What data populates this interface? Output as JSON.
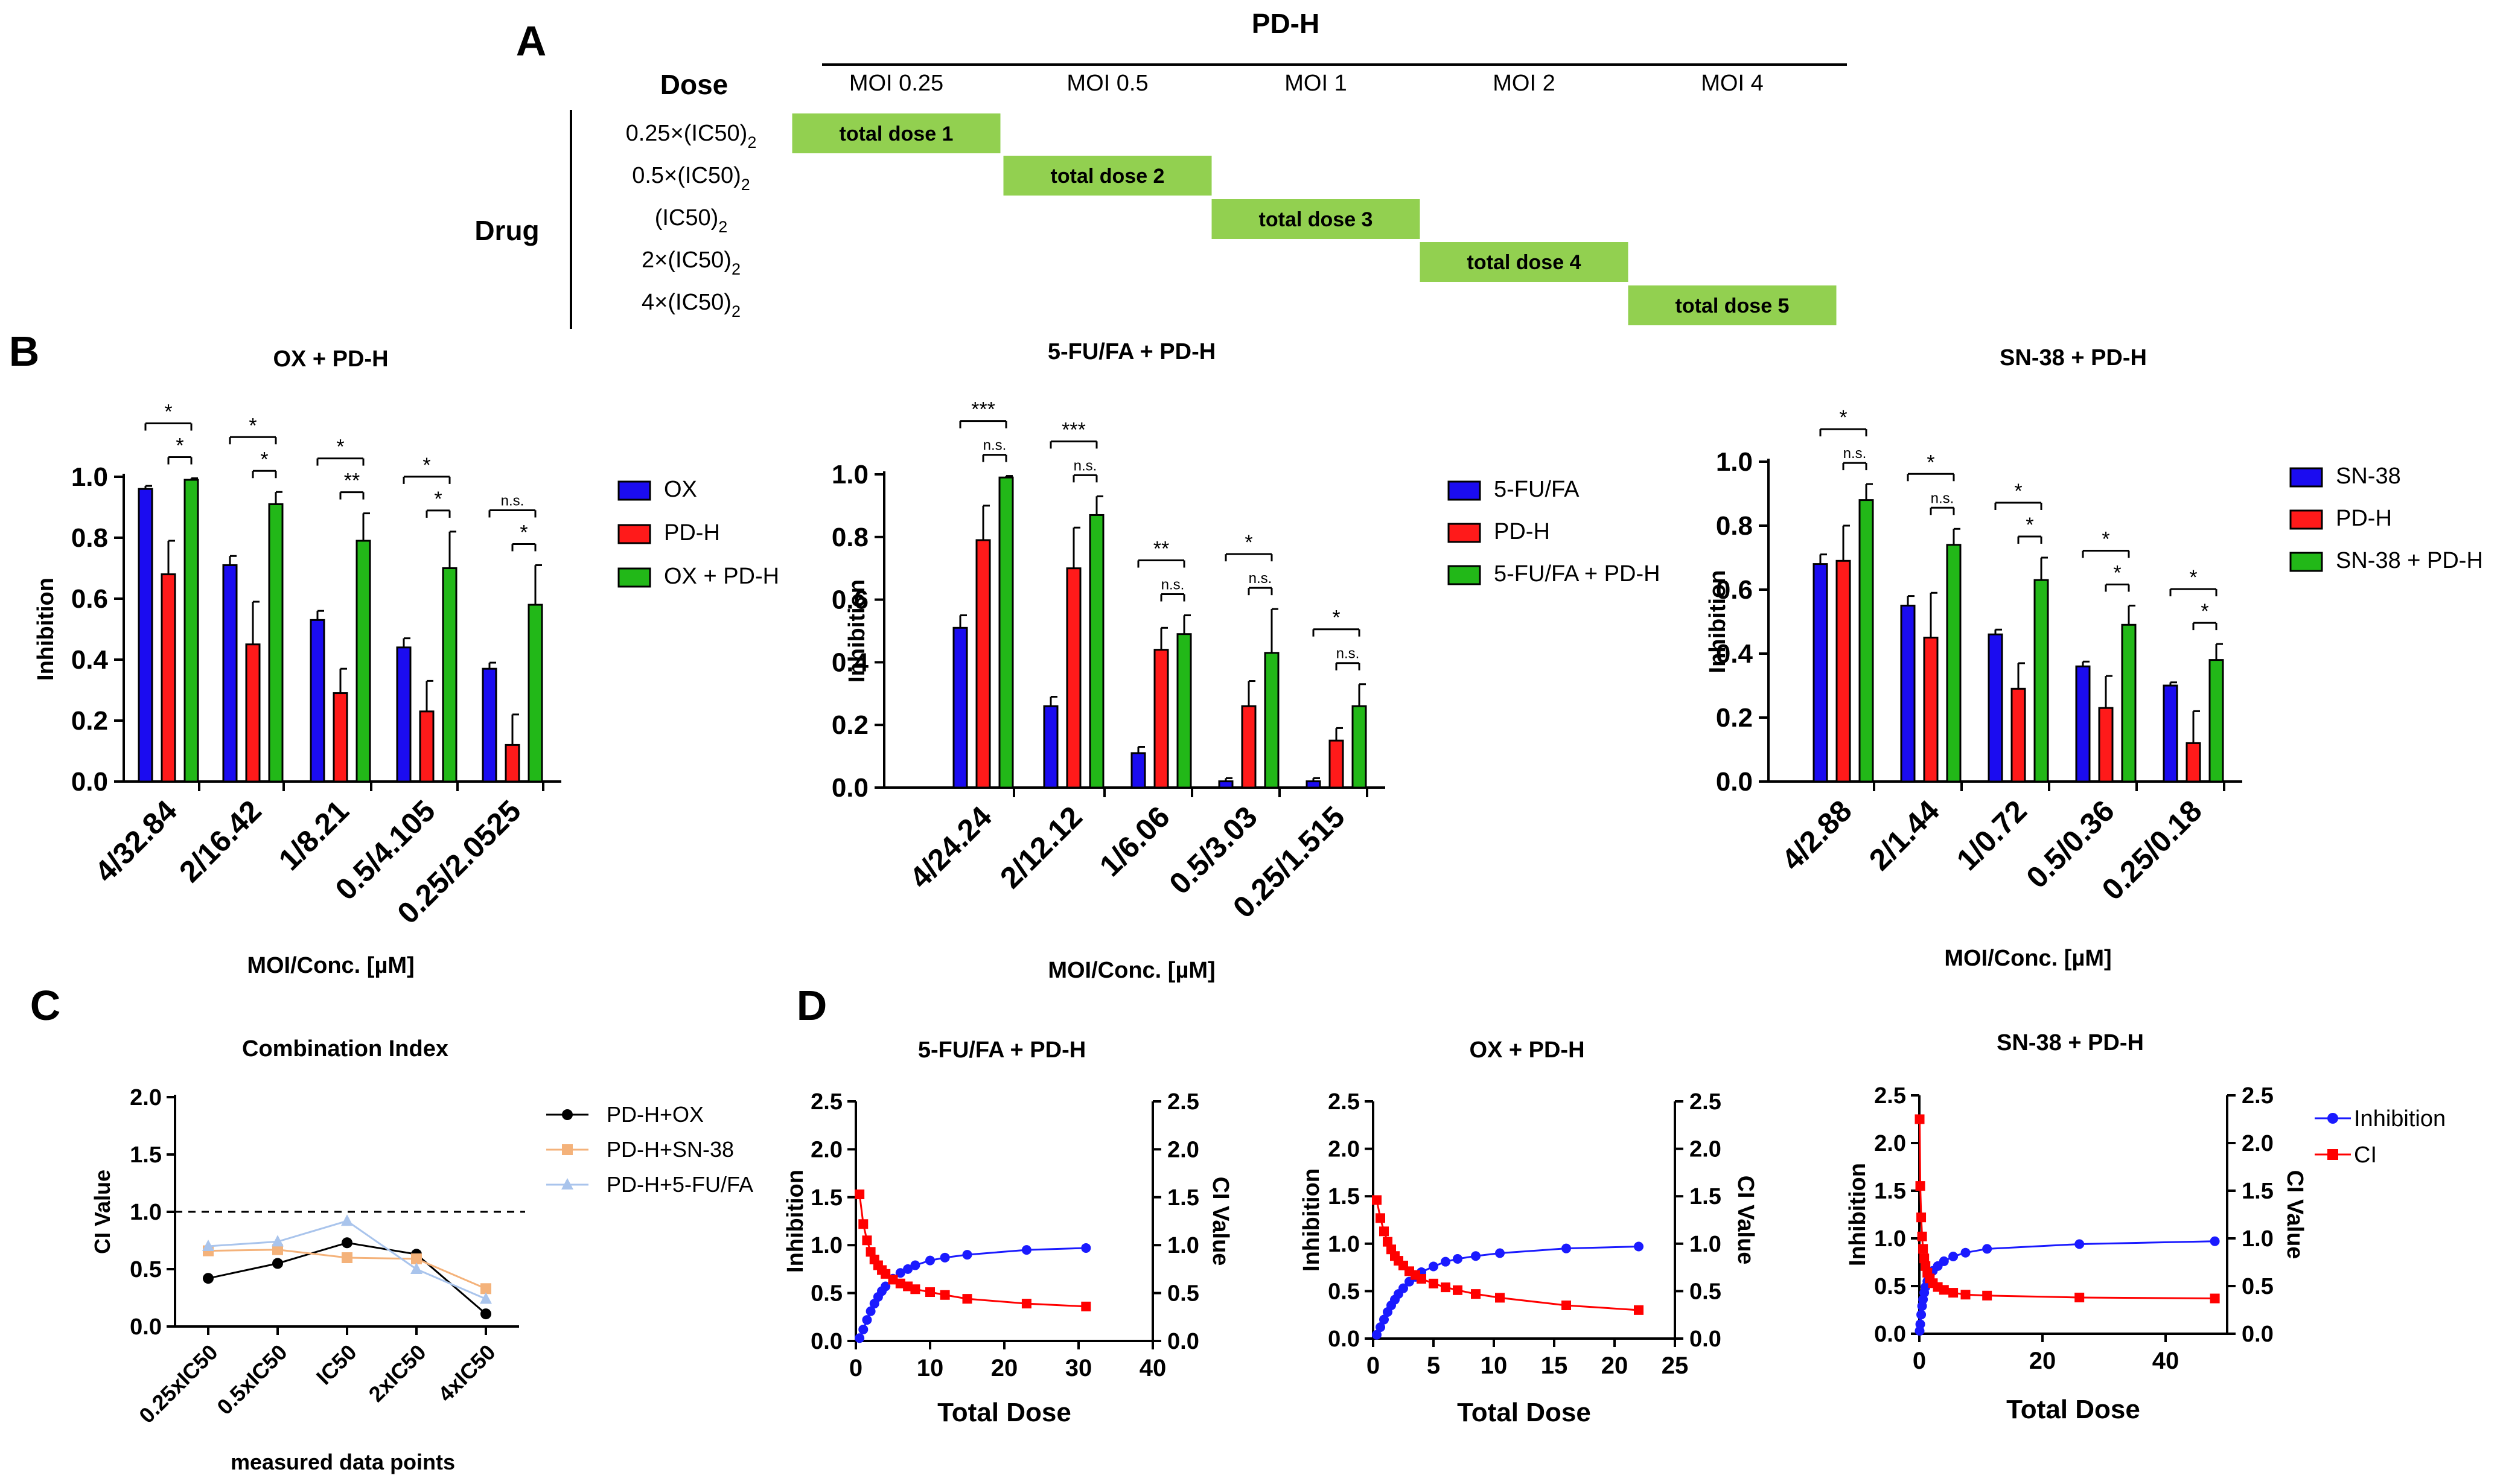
{
  "panel_labels": {
    "A": "A",
    "B": "B",
    "C": "C",
    "D": "D"
  },
  "panel_a": {
    "title": "PD-H",
    "dose_header": "Dose",
    "drug_label": "Drug",
    "moi_columns": [
      "MOI 0.25",
      "MOI 0.5",
      "MOI 1",
      "MOI 2",
      "MOI 4"
    ],
    "dose_rows": [
      {
        "prefix": "0.25×(IC50)",
        "sub": "2"
      },
      {
        "prefix": "0.5×(IC50)",
        "sub": "2"
      },
      {
        "prefix": "(IC50)",
        "sub": "2"
      },
      {
        "prefix": "2×(IC50)",
        "sub": "2"
      },
      {
        "prefix": "4×(IC50)",
        "sub": "2"
      }
    ],
    "cells": [
      "total dose 1",
      "total dose 2",
      "total dose 3",
      "total dose 4",
      "total dose 5"
    ],
    "cell_color": "#92d050"
  },
  "colors": {
    "blue": "#1b0cf0",
    "red": "#ff1a1a",
    "green": "#22b818",
    "black": "#000000",
    "orange": "#f4b27a",
    "lightblue": "#a9c4ec",
    "series_blue": "#1a1aff",
    "series_red": "#ff0000"
  },
  "chart_data": [
    {
      "id": "B1",
      "type": "bar",
      "title": "OX + PD-H",
      "xlabel": "MOI/Conc. [µM]",
      "ylabel": "Inhibition",
      "ylim": [
        0,
        1.0
      ],
      "yticks": [
        "0.0",
        "0.2",
        "0.4",
        "0.6",
        "0.8",
        "1.0"
      ],
      "categories": [
        "4/32.84",
        "2/16.42",
        "1/8.21",
        "0.5/4.105",
        "0.25/2.0525"
      ],
      "series": [
        {
          "name": "OX",
          "color": "blue",
          "values": [
            0.96,
            0.71,
            0.53,
            0.44,
            0.37
          ],
          "err": [
            0.01,
            0.03,
            0.03,
            0.03,
            0.02
          ]
        },
        {
          "name": "PD-H",
          "color": "red",
          "values": [
            0.68,
            0.45,
            0.29,
            0.23,
            0.12
          ],
          "err": [
            0.11,
            0.14,
            0.08,
            0.1,
            0.1
          ]
        },
        {
          "name": "OX + PD-H",
          "color": "green",
          "values": [
            0.99,
            0.91,
            0.79,
            0.7,
            0.58
          ],
          "err": [
            0.005,
            0.04,
            0.09,
            0.12,
            0.13
          ]
        }
      ],
      "sig_outer": [
        "*",
        "*",
        "*",
        "*",
        "n.s."
      ],
      "sig_inner": [
        "*",
        "*",
        "**",
        "*",
        "*"
      ]
    },
    {
      "id": "B2",
      "type": "bar",
      "title": "5-FU/FA + PD-H",
      "xlabel": "MOI/Conc. [µM]",
      "ylabel": "Inhibition",
      "ylim": [
        0,
        1.0
      ],
      "yticks": [
        "0.0",
        "0.2",
        "0.4",
        "0.6",
        "0.8",
        "1.0"
      ],
      "categories": [
        "4/24.24",
        "2/12.12",
        "1/6.06",
        "0.5/3.03",
        "0.25/1.515"
      ],
      "series": [
        {
          "name": "5-FU/FA",
          "color": "blue",
          "values": [
            0.51,
            0.26,
            0.11,
            0.02,
            0.02
          ],
          "err": [
            0.04,
            0.03,
            0.02,
            0.01,
            0.01
          ]
        },
        {
          "name": "PD-H",
          "color": "red",
          "values": [
            0.79,
            0.7,
            0.44,
            0.26,
            0.15
          ],
          "err": [
            0.11,
            0.13,
            0.07,
            0.08,
            0.04
          ]
        },
        {
          "name": "5-FU/FA + PD-H",
          "color": "green",
          "values": [
            0.99,
            0.87,
            0.49,
            0.43,
            0.26
          ],
          "err": [
            0.005,
            0.06,
            0.06,
            0.14,
            0.07
          ]
        }
      ],
      "sig_outer": [
        "***",
        "***",
        "**",
        "*",
        "*"
      ],
      "sig_inner": [
        "n.s.",
        "n.s.",
        "n.s.",
        "n.s.",
        "n.s."
      ]
    },
    {
      "id": "B3",
      "type": "bar",
      "title": "SN-38 + PD-H",
      "xlabel": "MOI/Conc. [µM]",
      "ylabel": "Inhibition",
      "ylim": [
        0,
        1.0
      ],
      "yticks": [
        "0.0",
        "0.2",
        "0.4",
        "0.6",
        "0.8",
        "1.0"
      ],
      "categories": [
        "4/2.88",
        "2/1.44",
        "1/0.72",
        "0.5/0.36",
        "0.25/0.18"
      ],
      "series": [
        {
          "name": "SN-38",
          "color": "blue",
          "values": [
            0.68,
            0.55,
            0.46,
            0.36,
            0.3
          ],
          "err": [
            0.03,
            0.03,
            0.015,
            0.015,
            0.01
          ]
        },
        {
          "name": "PD-H",
          "color": "red",
          "values": [
            0.69,
            0.45,
            0.29,
            0.23,
            0.12
          ],
          "err": [
            0.11,
            0.14,
            0.08,
            0.1,
            0.1
          ]
        },
        {
          "name": "SN-38 + PD-H",
          "color": "green",
          "values": [
            0.88,
            0.74,
            0.63,
            0.49,
            0.38
          ],
          "err": [
            0.05,
            0.05,
            0.07,
            0.06,
            0.05
          ]
        }
      ],
      "sig_outer": [
        "*",
        "*",
        "*",
        "*",
        "*"
      ],
      "sig_inner": [
        "n.s.",
        "n.s.",
        "*",
        "*",
        "*"
      ]
    },
    {
      "id": "C",
      "type": "line",
      "title": "Combination Index",
      "xlabel": "measured data points",
      "ylabel": "CI Value",
      "ylim": [
        0,
        2.0
      ],
      "yticks": [
        "0.0",
        "0.5",
        "1.0",
        "1.5",
        "2.0"
      ],
      "reference_line": 1.0,
      "categories": [
        "0.25xIC50",
        "0.5xIC50",
        "IC50",
        "2xIC50",
        "4xIC50"
      ],
      "series": [
        {
          "name": "PD-H+OX",
          "color": "black",
          "marker": "circle",
          "values": [
            0.42,
            0.55,
            0.73,
            0.63,
            0.11
          ]
        },
        {
          "name": "PD-H+SN-38",
          "color": "orange",
          "marker": "square",
          "values": [
            0.66,
            0.67,
            0.6,
            0.59,
            0.33
          ]
        },
        {
          "name": "PD-H+5-FU/FA",
          "color": "lightblue",
          "marker": "triangle",
          "values": [
            0.7,
            0.74,
            0.92,
            0.5,
            0.24
          ]
        }
      ]
    },
    {
      "id": "D1",
      "type": "line",
      "title": "5-FU/FA + PD-H",
      "xlabel": "Total Dose",
      "ylabel": "Inhibition",
      "y2label": "CI Value",
      "xlim": [
        0,
        40
      ],
      "xticks": [
        "0",
        "10",
        "20",
        "30",
        "40"
      ],
      "ylim": [
        0,
        2.5
      ],
      "yticks": [
        "0.0",
        "0.5",
        "1.0",
        "1.5",
        "2.0",
        "2.5"
      ],
      "y2ticks": [
        "0.0",
        "0.5",
        "1.0",
        "1.5",
        "2.0",
        "2.5"
      ],
      "series": [
        {
          "name": "Inhibition",
          "color": "series_blue",
          "marker": "circle",
          "x": [
            0.5,
            1,
            1.5,
            2,
            2.5,
            3,
            3.5,
            4,
            5,
            6,
            7,
            8,
            10,
            12,
            15,
            23,
            31
          ],
          "y": [
            0.03,
            0.12,
            0.22,
            0.31,
            0.39,
            0.46,
            0.52,
            0.57,
            0.65,
            0.71,
            0.75,
            0.79,
            0.84,
            0.87,
            0.9,
            0.95,
            0.97
          ]
        },
        {
          "name": "CI",
          "color": "series_red",
          "marker": "square",
          "x": [
            0.5,
            1,
            1.5,
            2,
            2.5,
            3,
            3.5,
            4,
            5,
            6,
            7,
            8,
            10,
            12,
            15,
            23,
            31
          ],
          "y": [
            1.53,
            1.22,
            1.05,
            0.93,
            0.85,
            0.79,
            0.74,
            0.7,
            0.64,
            0.6,
            0.57,
            0.54,
            0.51,
            0.48,
            0.44,
            0.39,
            0.36
          ]
        }
      ]
    },
    {
      "id": "D2",
      "type": "line",
      "title": "OX + PD-H",
      "xlabel": "Total Dose",
      "ylabel": "Inhibition",
      "y2label": "CI Value",
      "xlim": [
        0,
        25
      ],
      "xticks": [
        "0",
        "5",
        "10",
        "15",
        "20",
        "25"
      ],
      "ylim": [
        0,
        2.5
      ],
      "yticks": [
        "0.0",
        "0.5",
        "1.0",
        "1.5",
        "2.0",
        "2.5"
      ],
      "y2ticks": [
        "0.0",
        "0.5",
        "1.0",
        "1.5",
        "2.0",
        "2.5"
      ],
      "series": [
        {
          "name": "Inhibition",
          "color": "series_blue",
          "marker": "circle",
          "x": [
            0.3,
            0.6,
            0.9,
            1.2,
            1.5,
            1.8,
            2.1,
            2.5,
            3,
            3.5,
            4,
            5,
            6,
            7,
            8.5,
            10.5,
            16,
            22
          ],
          "y": [
            0.04,
            0.12,
            0.2,
            0.28,
            0.35,
            0.41,
            0.47,
            0.53,
            0.6,
            0.65,
            0.7,
            0.76,
            0.81,
            0.84,
            0.87,
            0.9,
            0.95,
            0.97
          ]
        },
        {
          "name": "CI",
          "color": "series_red",
          "marker": "square",
          "x": [
            0.3,
            0.6,
            0.9,
            1.2,
            1.5,
            1.8,
            2.1,
            2.5,
            3,
            3.5,
            4,
            5,
            6,
            7,
            8.5,
            10.5,
            16,
            22
          ],
          "y": [
            1.46,
            1.27,
            1.13,
            1.02,
            0.94,
            0.87,
            0.82,
            0.77,
            0.71,
            0.67,
            0.63,
            0.58,
            0.54,
            0.51,
            0.47,
            0.43,
            0.35,
            0.3
          ]
        }
      ]
    },
    {
      "id": "D3",
      "type": "line",
      "title": "SN-38 + PD-H",
      "xlabel": "Total Dose",
      "ylabel": "Inhibition",
      "y2label": "CI Value",
      "xlim": [
        0,
        50
      ],
      "xticks": [
        "0",
        "20",
        "40"
      ],
      "ylim": [
        0,
        2.5
      ],
      "yticks": [
        "0.0",
        "0.5",
        "1.0",
        "1.5",
        "2.0",
        "2.5"
      ],
      "y2ticks": [
        "0.0",
        "0.5",
        "1.0",
        "1.5",
        "2.0",
        "2.5"
      ],
      "legend": [
        "Inhibition",
        "CI"
      ],
      "series": [
        {
          "name": "Inhibition",
          "color": "series_blue",
          "marker": "circle",
          "x": [
            0.05,
            0.15,
            0.3,
            0.45,
            0.6,
            0.8,
            1.0,
            1.3,
            1.7,
            2.2,
            3,
            4,
            5.5,
            7.5,
            11,
            26,
            48
          ],
          "y": [
            0.03,
            0.1,
            0.2,
            0.29,
            0.36,
            0.43,
            0.49,
            0.55,
            0.61,
            0.66,
            0.71,
            0.76,
            0.81,
            0.85,
            0.89,
            0.94,
            0.97
          ]
        },
        {
          "name": "CI",
          "color": "series_red",
          "marker": "square",
          "x": [
            0.05,
            0.15,
            0.3,
            0.45,
            0.6,
            0.8,
            1.0,
            1.3,
            1.7,
            2.2,
            3,
            4,
            5.5,
            7.5,
            11,
            26,
            48
          ],
          "y": [
            2.25,
            1.55,
            1.22,
            1.02,
            0.89,
            0.79,
            0.71,
            0.64,
            0.58,
            0.53,
            0.49,
            0.46,
            0.43,
            0.41,
            0.4,
            0.38,
            0.37
          ]
        }
      ]
    }
  ]
}
